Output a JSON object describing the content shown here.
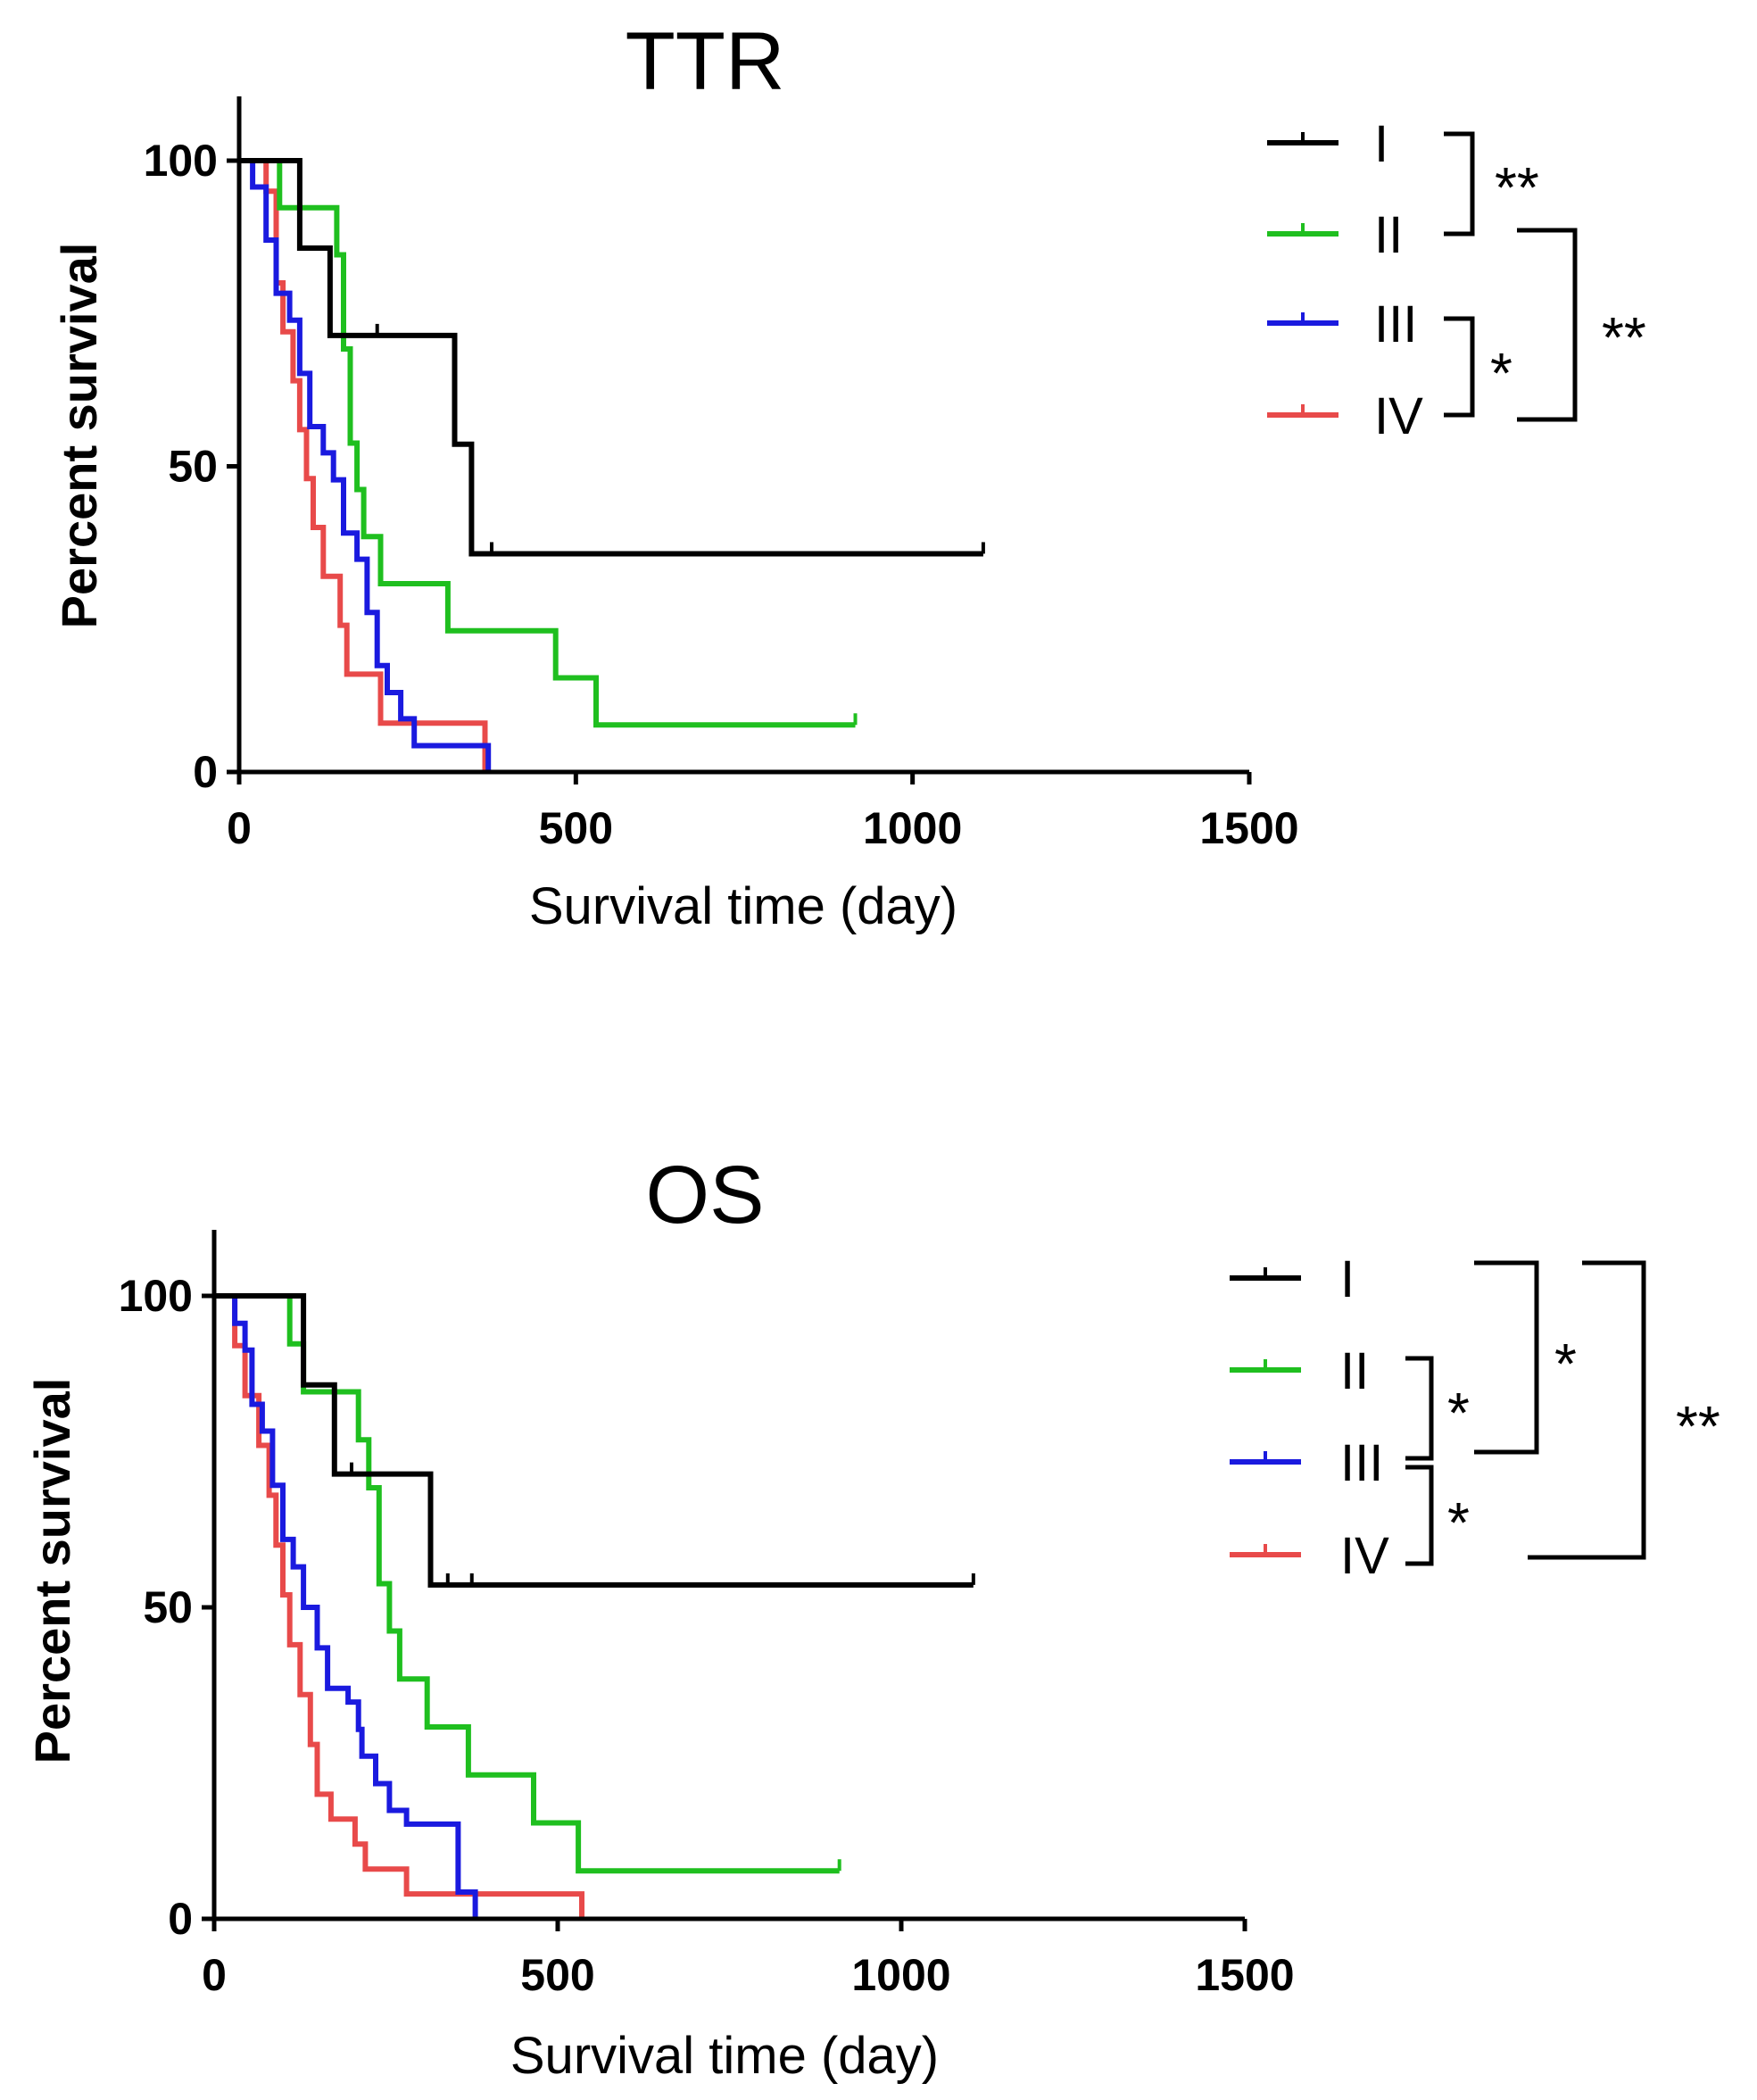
{
  "colors": {
    "I": "#000000",
    "II": "#1fbf1f",
    "III": "#1a1adf",
    "IV": "#e84a4a"
  },
  "chart_data": [
    {
      "type": "line",
      "title": "TTR",
      "xlabel": "Survival time (day)",
      "ylabel": "Percent survival",
      "xlim": [
        0,
        1500
      ],
      "ylim": [
        0,
        100
      ],
      "xticks": [
        0,
        500,
        1000,
        1500
      ],
      "yticks": [
        0,
        50,
        100
      ],
      "series": [
        {
          "name": "I",
          "color": "#000000",
          "steps": [
            [
              0,
              100
            ],
            [
              90,
              100
            ],
            [
              90,
              85.7
            ],
            [
              135,
              85.7
            ],
            [
              135,
              71.4
            ],
            [
              320,
              71.4
            ],
            [
              320,
              53.6
            ],
            [
              345,
              53.6
            ],
            [
              345,
              35.7
            ],
            [
              1105,
              35.7
            ]
          ],
          "censor": [
            [
              205,
              71.4
            ],
            [
              375,
              35.7
            ],
            [
              1105,
              35.7
            ]
          ]
        },
        {
          "name": "II",
          "color": "#1fbf1f",
          "steps": [
            [
              0,
              100
            ],
            [
              60,
              100
            ],
            [
              60,
              92.3
            ],
            [
              145,
              92.3
            ],
            [
              145,
              84.6
            ],
            [
              155,
              84.6
            ],
            [
              155,
              69.2
            ],
            [
              165,
              69.2
            ],
            [
              165,
              53.8
            ],
            [
              175,
              53.8
            ],
            [
              175,
              46.2
            ],
            [
              185,
              46.2
            ],
            [
              185,
              38.5
            ],
            [
              210,
              38.5
            ],
            [
              210,
              30.8
            ],
            [
              310,
              30.8
            ],
            [
              310,
              23.1
            ],
            [
              470,
              23.1
            ],
            [
              470,
              15.4
            ],
            [
              530,
              15.4
            ],
            [
              530,
              7.7
            ],
            [
              915,
              7.7
            ]
          ],
          "censor": [
            [
              915,
              7.7
            ]
          ]
        },
        {
          "name": "III",
          "color": "#1a1adf",
          "steps": [
            [
              0,
              100
            ],
            [
              20,
              100
            ],
            [
              20,
              95.7
            ],
            [
              40,
              95.7
            ],
            [
              40,
              87
            ],
            [
              55,
              87
            ],
            [
              55,
              78.3
            ],
            [
              75,
              78.3
            ],
            [
              75,
              73.9
            ],
            [
              90,
              73.9
            ],
            [
              90,
              65.2
            ],
            [
              105,
              65.2
            ],
            [
              105,
              56.5
            ],
            [
              125,
              56.5
            ],
            [
              125,
              52.2
            ],
            [
              140,
              52.2
            ],
            [
              140,
              47.8
            ],
            [
              155,
              47.8
            ],
            [
              155,
              39.1
            ],
            [
              175,
              39.1
            ],
            [
              175,
              34.8
            ],
            [
              190,
              34.8
            ],
            [
              190,
              26.1
            ],
            [
              205,
              26.1
            ],
            [
              205,
              17.4
            ],
            [
              220,
              17.4
            ],
            [
              220,
              13
            ],
            [
              240,
              13
            ],
            [
              240,
              8.7
            ],
            [
              260,
              8.7
            ],
            [
              260,
              4.3
            ],
            [
              370,
              4.3
            ],
            [
              370,
              0
            ]
          ],
          "censor": []
        },
        {
          "name": "IV",
          "color": "#e84a4a",
          "steps": [
            [
              0,
              100
            ],
            [
              40,
              100
            ],
            [
              40,
              95
            ],
            [
              55,
              95
            ],
            [
              55,
              80
            ],
            [
              65,
              80
            ],
            [
              65,
              72
            ],
            [
              80,
              72
            ],
            [
              80,
              64
            ],
            [
              90,
              64
            ],
            [
              90,
              56
            ],
            [
              100,
              56
            ],
            [
              100,
              48
            ],
            [
              110,
              48
            ],
            [
              110,
              40
            ],
            [
              125,
              40
            ],
            [
              125,
              32
            ],
            [
              150,
              32
            ],
            [
              150,
              24
            ],
            [
              160,
              24
            ],
            [
              160,
              16
            ],
            [
              210,
              16
            ],
            [
              210,
              8
            ],
            [
              365,
              8
            ],
            [
              365,
              0
            ]
          ],
          "censor": []
        }
      ],
      "legend": [
        "I",
        "II",
        "III",
        "IV"
      ],
      "significance": [
        {
          "pair": [
            "I",
            "II"
          ],
          "label": "**"
        },
        {
          "pair": [
            "III",
            "IV"
          ],
          "label": "*"
        },
        {
          "pair": [
            "II",
            "IV"
          ],
          "label": "**"
        }
      ]
    },
    {
      "type": "line",
      "title": "OS",
      "xlabel": "Survival time (day)",
      "ylabel": "Percent survival",
      "xlim": [
        0,
        1500
      ],
      "ylim": [
        0,
        100
      ],
      "xticks": [
        0,
        500,
        1000,
        1500
      ],
      "yticks": [
        0,
        50,
        100
      ],
      "series": [
        {
          "name": "I",
          "color": "#000000",
          "steps": [
            [
              0,
              100
            ],
            [
              130,
              100
            ],
            [
              130,
              85.7
            ],
            [
              175,
              85.7
            ],
            [
              175,
              71.4
            ],
            [
              315,
              71.4
            ],
            [
              315,
              53.6
            ],
            [
              1105,
              53.6
            ]
          ],
          "censor": [
            [
              200,
              71.4
            ],
            [
              340,
              53.6
            ],
            [
              375,
              53.6
            ],
            [
              1105,
              53.6
            ]
          ]
        },
        {
          "name": "II",
          "color": "#1fbf1f",
          "steps": [
            [
              0,
              100
            ],
            [
              110,
              100
            ],
            [
              110,
              92.3
            ],
            [
              130,
              92.3
            ],
            [
              130,
              84.6
            ],
            [
              210,
              84.6
            ],
            [
              210,
              76.9
            ],
            [
              225,
              76.9
            ],
            [
              225,
              69.2
            ],
            [
              240,
              69.2
            ],
            [
              240,
              53.8
            ],
            [
              255,
              53.8
            ],
            [
              255,
              46.2
            ],
            [
              270,
              46.2
            ],
            [
              270,
              38.5
            ],
            [
              310,
              38.5
            ],
            [
              310,
              30.8
            ],
            [
              370,
              30.8
            ],
            [
              370,
              23.1
            ],
            [
              465,
              23.1
            ],
            [
              465,
              15.4
            ],
            [
              530,
              15.4
            ],
            [
              530,
              7.7
            ],
            [
              910,
              7.7
            ]
          ],
          "censor": [
            [
              910,
              7.7
            ]
          ]
        },
        {
          "name": "III",
          "color": "#1a1adf",
          "steps": [
            [
              0,
              100
            ],
            [
              30,
              100
            ],
            [
              30,
              95.6
            ],
            [
              45,
              95.6
            ],
            [
              45,
              91.3
            ],
            [
              55,
              91.3
            ],
            [
              55,
              82.6
            ],
            [
              70,
              82.6
            ],
            [
              70,
              78.3
            ],
            [
              85,
              78.3
            ],
            [
              85,
              69.6
            ],
            [
              100,
              69.6
            ],
            [
              100,
              60.9
            ],
            [
              115,
              60.9
            ],
            [
              115,
              56.5
            ],
            [
              130,
              56.5
            ],
            [
              130,
              50
            ],
            [
              150,
              50
            ],
            [
              150,
              43.5
            ],
            [
              165,
              43.5
            ],
            [
              165,
              37
            ],
            [
              195,
              37
            ],
            [
              195,
              34.8
            ],
            [
              210,
              34.8
            ],
            [
              210,
              30.4
            ],
            [
              215,
              30.4
            ],
            [
              215,
              26.1
            ],
            [
              235,
              26.1
            ],
            [
              235,
              21.7
            ],
            [
              255,
              21.7
            ],
            [
              255,
              17.4
            ],
            [
              280,
              17.4
            ],
            [
              280,
              15.2
            ],
            [
              355,
              15.2
            ],
            [
              355,
              4.3
            ],
            [
              380,
              4.3
            ],
            [
              380,
              0
            ]
          ],
          "censor": []
        },
        {
          "name": "IV",
          "color": "#e84a4a",
          "steps": [
            [
              0,
              100
            ],
            [
              30,
              100
            ],
            [
              30,
              92
            ],
            [
              45,
              92
            ],
            [
              45,
              84
            ],
            [
              65,
              84
            ],
            [
              65,
              76
            ],
            [
              80,
              76
            ],
            [
              80,
              68
            ],
            [
              90,
              68
            ],
            [
              90,
              60
            ],
            [
              100,
              60
            ],
            [
              100,
              52
            ],
            [
              110,
              52
            ],
            [
              110,
              44
            ],
            [
              125,
              44
            ],
            [
              125,
              36
            ],
            [
              140,
              36
            ],
            [
              140,
              28
            ],
            [
              150,
              28
            ],
            [
              150,
              20
            ],
            [
              170,
              20
            ],
            [
              170,
              16
            ],
            [
              205,
              16
            ],
            [
              205,
              12
            ],
            [
              220,
              12
            ],
            [
              220,
              8
            ],
            [
              280,
              8
            ],
            [
              280,
              4
            ],
            [
              535,
              4
            ],
            [
              535,
              0
            ]
          ],
          "censor": []
        }
      ],
      "legend": [
        "I",
        "II",
        "III",
        "IV"
      ],
      "significance": [
        {
          "pair": [
            "II",
            "III"
          ],
          "label": "*"
        },
        {
          "pair": [
            "III",
            "IV"
          ],
          "label": "*"
        },
        {
          "pair": [
            "I",
            "III"
          ],
          "label": "*"
        },
        {
          "pair": [
            "I",
            "IV"
          ],
          "label": "**"
        }
      ]
    }
  ]
}
